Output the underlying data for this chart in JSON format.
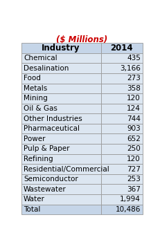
{
  "title": "($ Millions)",
  "title_color": "#CC0000",
  "col1_header": "Industry",
  "col2_header": "2014",
  "rows": [
    [
      "Chemical",
      "435"
    ],
    [
      "Desalination",
      "3,166"
    ],
    [
      "Food",
      "273"
    ],
    [
      "Metals",
      "358"
    ],
    [
      "Mining",
      "120"
    ],
    [
      "Oil & Gas",
      "124"
    ],
    [
      "Other Industries",
      "744"
    ],
    [
      "Pharmaceutical",
      "903"
    ],
    [
      "Power",
      "652"
    ],
    [
      "Pulp & Paper",
      "250"
    ],
    [
      "Refining",
      "120"
    ],
    [
      "Residential/Commercial",
      "727"
    ],
    [
      "Semiconductor",
      "253"
    ],
    [
      "Wastewater",
      "367"
    ],
    [
      "Water",
      "1,994"
    ],
    [
      "Total",
      "10,486"
    ]
  ],
  "header_bg": "#C5D5E8",
  "row_bg": "#DCE6F1",
  "total_row_bg": "#C5D5E8",
  "border_color": "#999999",
  "text_color": "#000000",
  "header_text_color": "#000000",
  "title_fontsize": 8.5,
  "font_size": 7.5,
  "header_font_size": 8.5,
  "col_split": 0.655
}
